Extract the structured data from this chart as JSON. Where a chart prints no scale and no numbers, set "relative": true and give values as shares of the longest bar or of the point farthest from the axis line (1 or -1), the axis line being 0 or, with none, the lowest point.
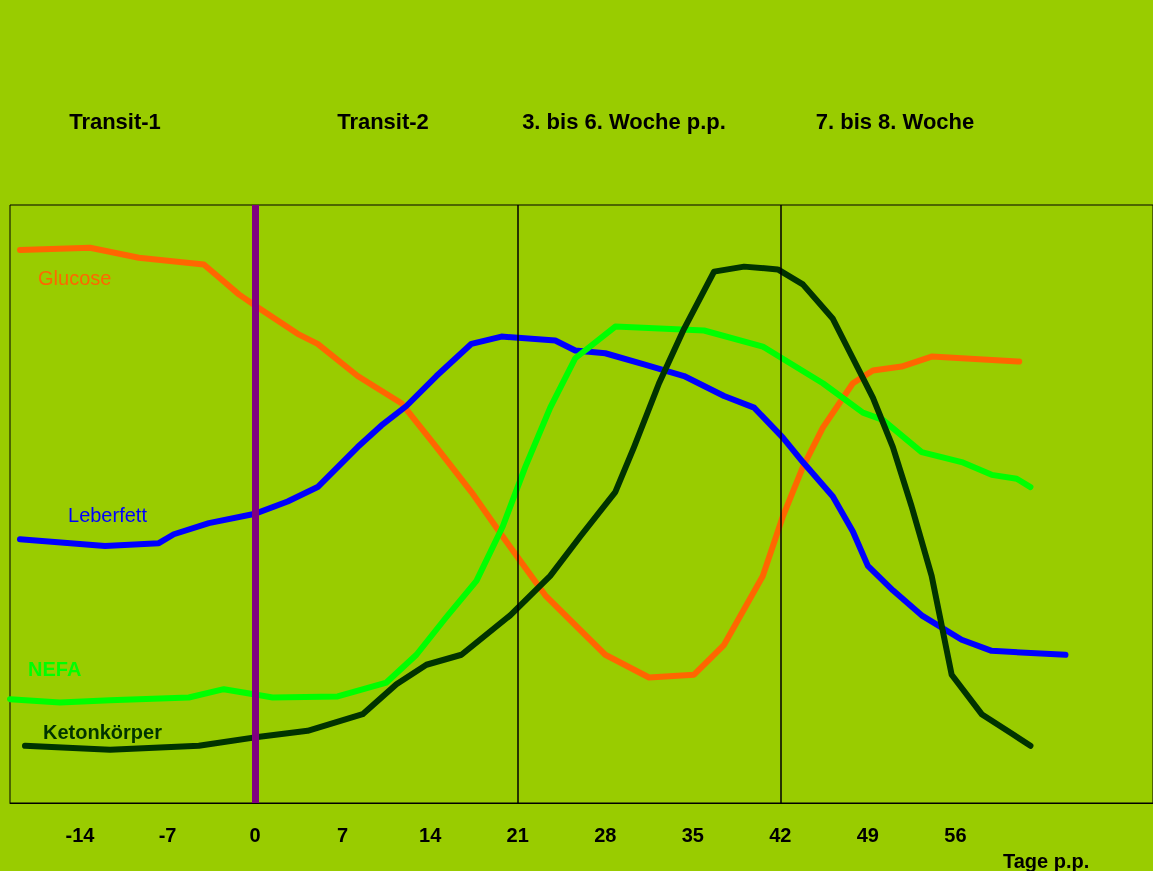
{
  "chart_data": {
    "type": "line",
    "relative": true,
    "xlabel": "Tage p.p.",
    "xlim": [
      -19.6,
      71.8
    ],
    "xticks": [
      -14,
      -7,
      0,
      7,
      14,
      21,
      28,
      35,
      42,
      49,
      56
    ],
    "grid": false,
    "legend": false,
    "marker": "none",
    "line_style": "solid",
    "annotations": [
      "Transit-1",
      "Transit-2",
      "3. bis 6. Woche p.p.",
      "7. bis 8. Woche"
    ],
    "ref_lines": [
      {
        "axis": "x",
        "value": 0,
        "color": "#800080"
      },
      {
        "axis": "x",
        "value": 21,
        "color": "#000000"
      },
      {
        "axis": "x",
        "value": 42,
        "color": "#000000"
      }
    ],
    "series": [
      {
        "name": "Glucose",
        "color": "#ff6600",
        "x": [
          -18.8,
          -13.2,
          -9.3,
          -4.1,
          -2.9,
          -1.3,
          0.2,
          3.4,
          5.0,
          8.2,
          11.7,
          14.5,
          17.3,
          19.8,
          23.2,
          28.0,
          31.5,
          35.1,
          37.5,
          40.6,
          42.2,
          43.8,
          45.4,
          47.8,
          49.4,
          51.7,
          54.1,
          61.1
        ],
        "values": [
          0.996,
          1,
          0.982,
          0.97,
          0.947,
          0.916,
          0.893,
          0.845,
          0.827,
          0.769,
          0.72,
          0.641,
          0.56,
          0.48,
          0.374,
          0.267,
          0.226,
          0.231,
          0.285,
          0.409,
          0.516,
          0.605,
          0.676,
          0.756,
          0.779,
          0.786,
          0.804,
          0.795
        ]
      },
      {
        "name": "Leberfett",
        "color": "#0000ff",
        "x": [
          -18.8,
          -12.0,
          -7.7,
          -6.5,
          -3.7,
          0,
          2.6,
          5.0,
          8.2,
          10.1,
          12.1,
          14.5,
          17.3,
          19.7,
          24.0,
          25.6,
          28.0,
          31.1,
          34.3,
          37.5,
          39.9,
          42.2,
          43.8,
          46.2,
          47.8,
          49.0,
          51.0,
          53.3,
          56.5,
          58.9,
          64.8
        ],
        "values": [
          0.475,
          0.463,
          0.468,
          0.484,
          0.504,
          0.521,
          0.543,
          0.569,
          0.641,
          0.68,
          0.715,
          0.769,
          0.827,
          0.84,
          0.833,
          0.815,
          0.81,
          0.79,
          0.769,
          0.733,
          0.712,
          0.658,
          0.614,
          0.552,
          0.489,
          0.427,
          0.383,
          0.338,
          0.294,
          0.274,
          0.267
        ]
      },
      {
        "name": "NEFA",
        "color": "#00ff00",
        "x": [
          -19.6,
          -15.6,
          -11.6,
          -5.3,
          -2.5,
          1.4,
          6.6,
          10.5,
          12.9,
          15.3,
          17.7,
          19.8,
          21.6,
          23.6,
          25.6,
          28.8,
          35.9,
          40.6,
          45.4,
          48.6,
          50.2,
          53.3,
          56.5,
          58.9,
          60.9,
          62.0
        ],
        "values": [
          0.187,
          0.181,
          0.185,
          0.19,
          0.205,
          0.19,
          0.192,
          0.217,
          0.267,
          0.335,
          0.4,
          0.498,
          0.605,
          0.712,
          0.801,
          0.858,
          0.851,
          0.822,
          0.756,
          0.703,
          0.69,
          0.632,
          0.614,
          0.591,
          0.584,
          0.569
        ]
      },
      {
        "name": "Ketonkörper",
        "color": "#003300",
        "x": [
          -18.4,
          -11.6,
          -4.5,
          0.2,
          4.2,
          8.6,
          11.3,
          13.7,
          16.5,
          20.4,
          23.6,
          26.0,
          28.8,
          30.3,
          32.3,
          34.3,
          36.7,
          39.1,
          41.8,
          43.8,
          46.2,
          47.8,
          49.4,
          51.0,
          52.5,
          54.1,
          55.7,
          58.1,
          60.5,
          62.0
        ],
        "values": [
          0.103,
          0.096,
          0.103,
          0.119,
          0.13,
          0.16,
          0.214,
          0.249,
          0.267,
          0.338,
          0.409,
          0.48,
          0.56,
          0.641,
          0.756,
          0.854,
          0.957,
          0.966,
          0.961,
          0.934,
          0.872,
          0.801,
          0.73,
          0.641,
          0.534,
          0.409,
          0.231,
          0.16,
          0.125,
          0.103
        ]
      }
    ]
  }
}
